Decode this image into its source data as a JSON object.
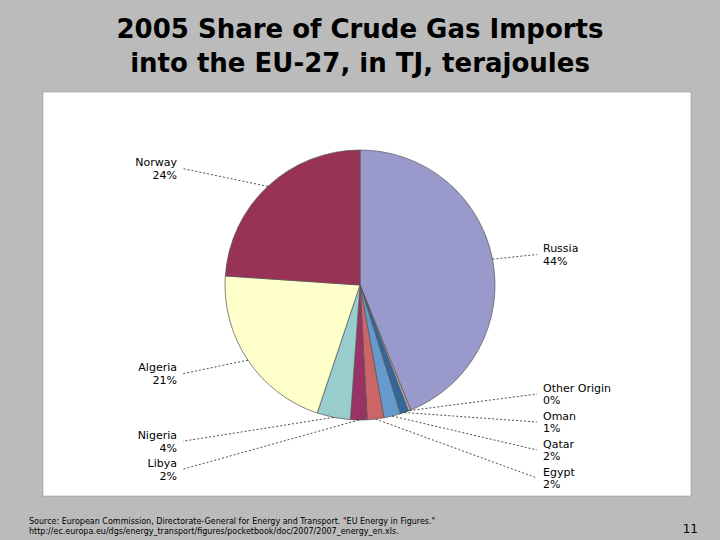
{
  "chart_data": {
    "type": "pie",
    "title": "2005 Share of Crude Gas Imports",
    "subtitle": "into the EU-27, in TJ, terajoules",
    "categories": [
      "Russia",
      "Other Origin",
      "Oman",
      "Qatar",
      "Egypt",
      "Libya",
      "Nigeria",
      "Algeria",
      "Norway"
    ],
    "values": [
      44,
      0.3,
      1,
      2,
      2,
      2,
      4,
      21,
      24
    ],
    "value_labels": [
      "44%",
      "0%",
      "1%",
      "2%",
      "2%",
      "2%",
      "4%",
      "21%",
      "24%"
    ],
    "colors": [
      "#9999CC",
      "#AAAAAA",
      "#336699",
      "#6699CC",
      "#CC6666",
      "#993366",
      "#99CCCC",
      "#FFFFCC",
      "#993355"
    ],
    "data_labels": true,
    "annotations": [
      "Source: European Commission, Directorate-General for Energy and Transport. \"EU Energy in Figures.\"\nhttp://ec.europa.eu/dgs/energy_transport/figures/pocketbook/doc/2007/2007_energy_en.xls.",
      "11"
    ]
  }
}
